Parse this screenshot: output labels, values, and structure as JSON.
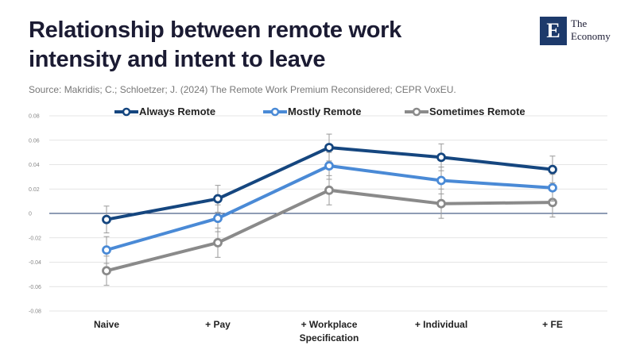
{
  "header": {
    "title": "Relationship between remote work intensity and intent to leave",
    "source": "Source: Makridis; C.; Schloetzer; J. (2024) The Remote Work Premium Reconsidered; CEPR VoxEU."
  },
  "logo": {
    "mark": "E",
    "line1": "The",
    "line2": "Economy",
    "color": "#1d3a6b"
  },
  "chart_data": {
    "type": "line",
    "categories": [
      "Naive",
      "+ Pay",
      "+ Workplace Specification",
      "+ Individual",
      "+ FE"
    ],
    "category_lines": [
      [
        "Naive"
      ],
      [
        "+ Pay"
      ],
      [
        "+ Workplace",
        "Specification"
      ],
      [
        "+ Individual"
      ],
      [
        "+ FE"
      ]
    ],
    "ylim": [
      -0.08,
      0.08
    ],
    "yticks": [
      0.08,
      0.06,
      0.04,
      0.02,
      0,
      -0.02,
      -0.04,
      -0.06,
      -0.08
    ],
    "ytick_labels": [
      "0.08",
      "0.06",
      "0.04",
      "0.02",
      "0",
      "-0.02",
      "-0.04",
      "-0.06",
      "-0.08"
    ],
    "grid": true,
    "legend_position": "top",
    "error_bars": true,
    "series": [
      {
        "name": "Always Remote",
        "color": "#15467f",
        "values": [
          -0.005,
          0.012,
          0.054,
          0.046,
          0.036
        ],
        "error": [
          0.011,
          0.011,
          0.011,
          0.011,
          0.011
        ]
      },
      {
        "name": "Mostly Remote",
        "color": "#4a8ad6",
        "values": [
          -0.03,
          -0.004,
          0.039,
          0.027,
          0.021
        ],
        "error": [
          0.011,
          0.011,
          0.011,
          0.011,
          0.011
        ]
      },
      {
        "name": "Sometimes Remote",
        "color": "#8a8a8a",
        "values": [
          -0.047,
          -0.024,
          0.019,
          0.008,
          0.009
        ],
        "error": [
          0.012,
          0.012,
          0.012,
          0.012,
          0.012
        ]
      }
    ]
  }
}
